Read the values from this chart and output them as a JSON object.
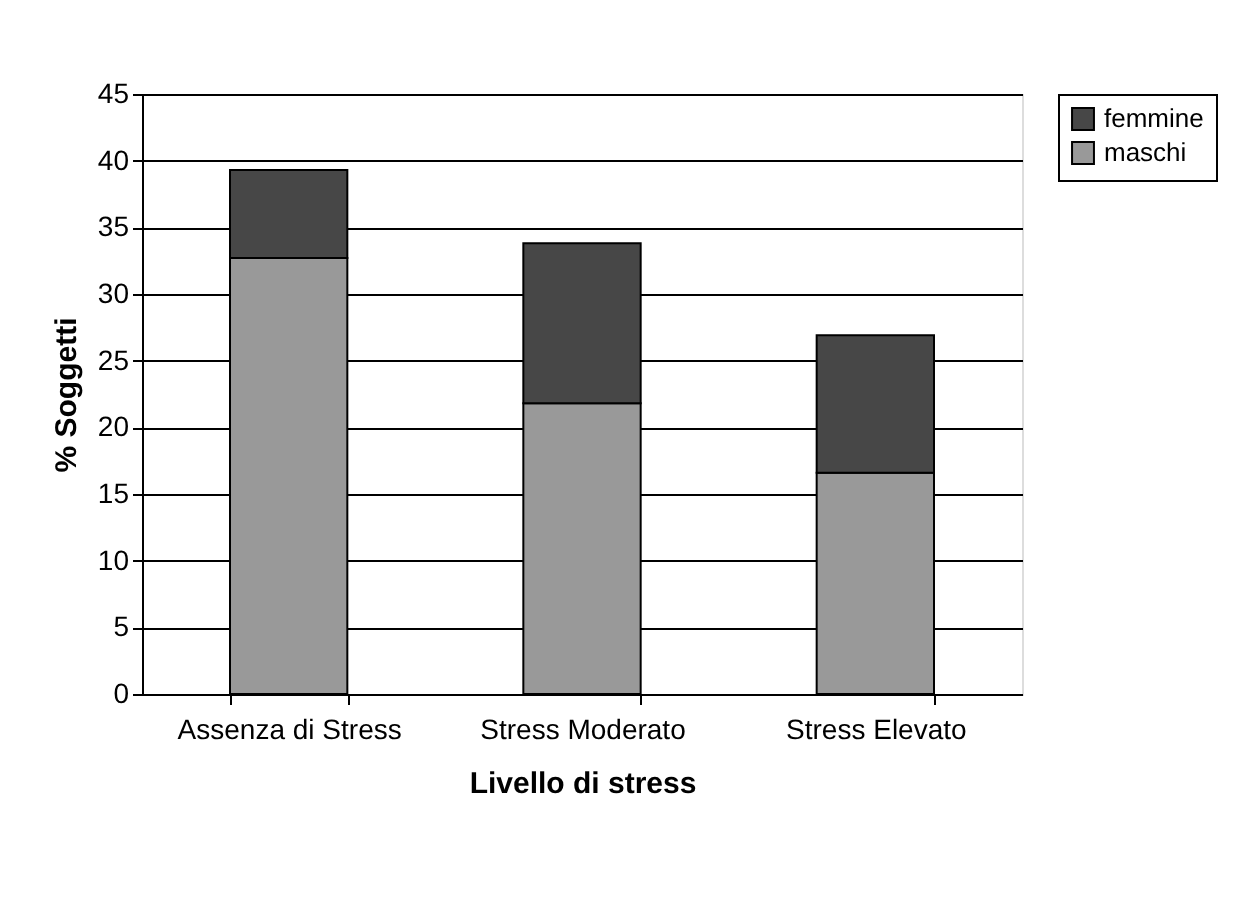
{
  "chart_data": {
    "type": "bar",
    "stacked": true,
    "xlabel": "Livello di stress",
    "ylabel": "% Soggetti",
    "categories": [
      "Assenza di Stress",
      "Stress Moderato",
      "Stress Elevato"
    ],
    "series": [
      {
        "name": "maschi",
        "color": "#999999",
        "values": [
          32.7,
          21.8,
          16.6
        ]
      },
      {
        "name": "femmine",
        "color": "#474747",
        "values": [
          6.6,
          12.0,
          10.3
        ]
      }
    ],
    "ylim": [
      0,
      45
    ],
    "yticks": [
      0,
      5,
      10,
      15,
      20,
      25,
      30,
      35,
      40,
      45
    ],
    "grid": "y",
    "legend": "right"
  }
}
